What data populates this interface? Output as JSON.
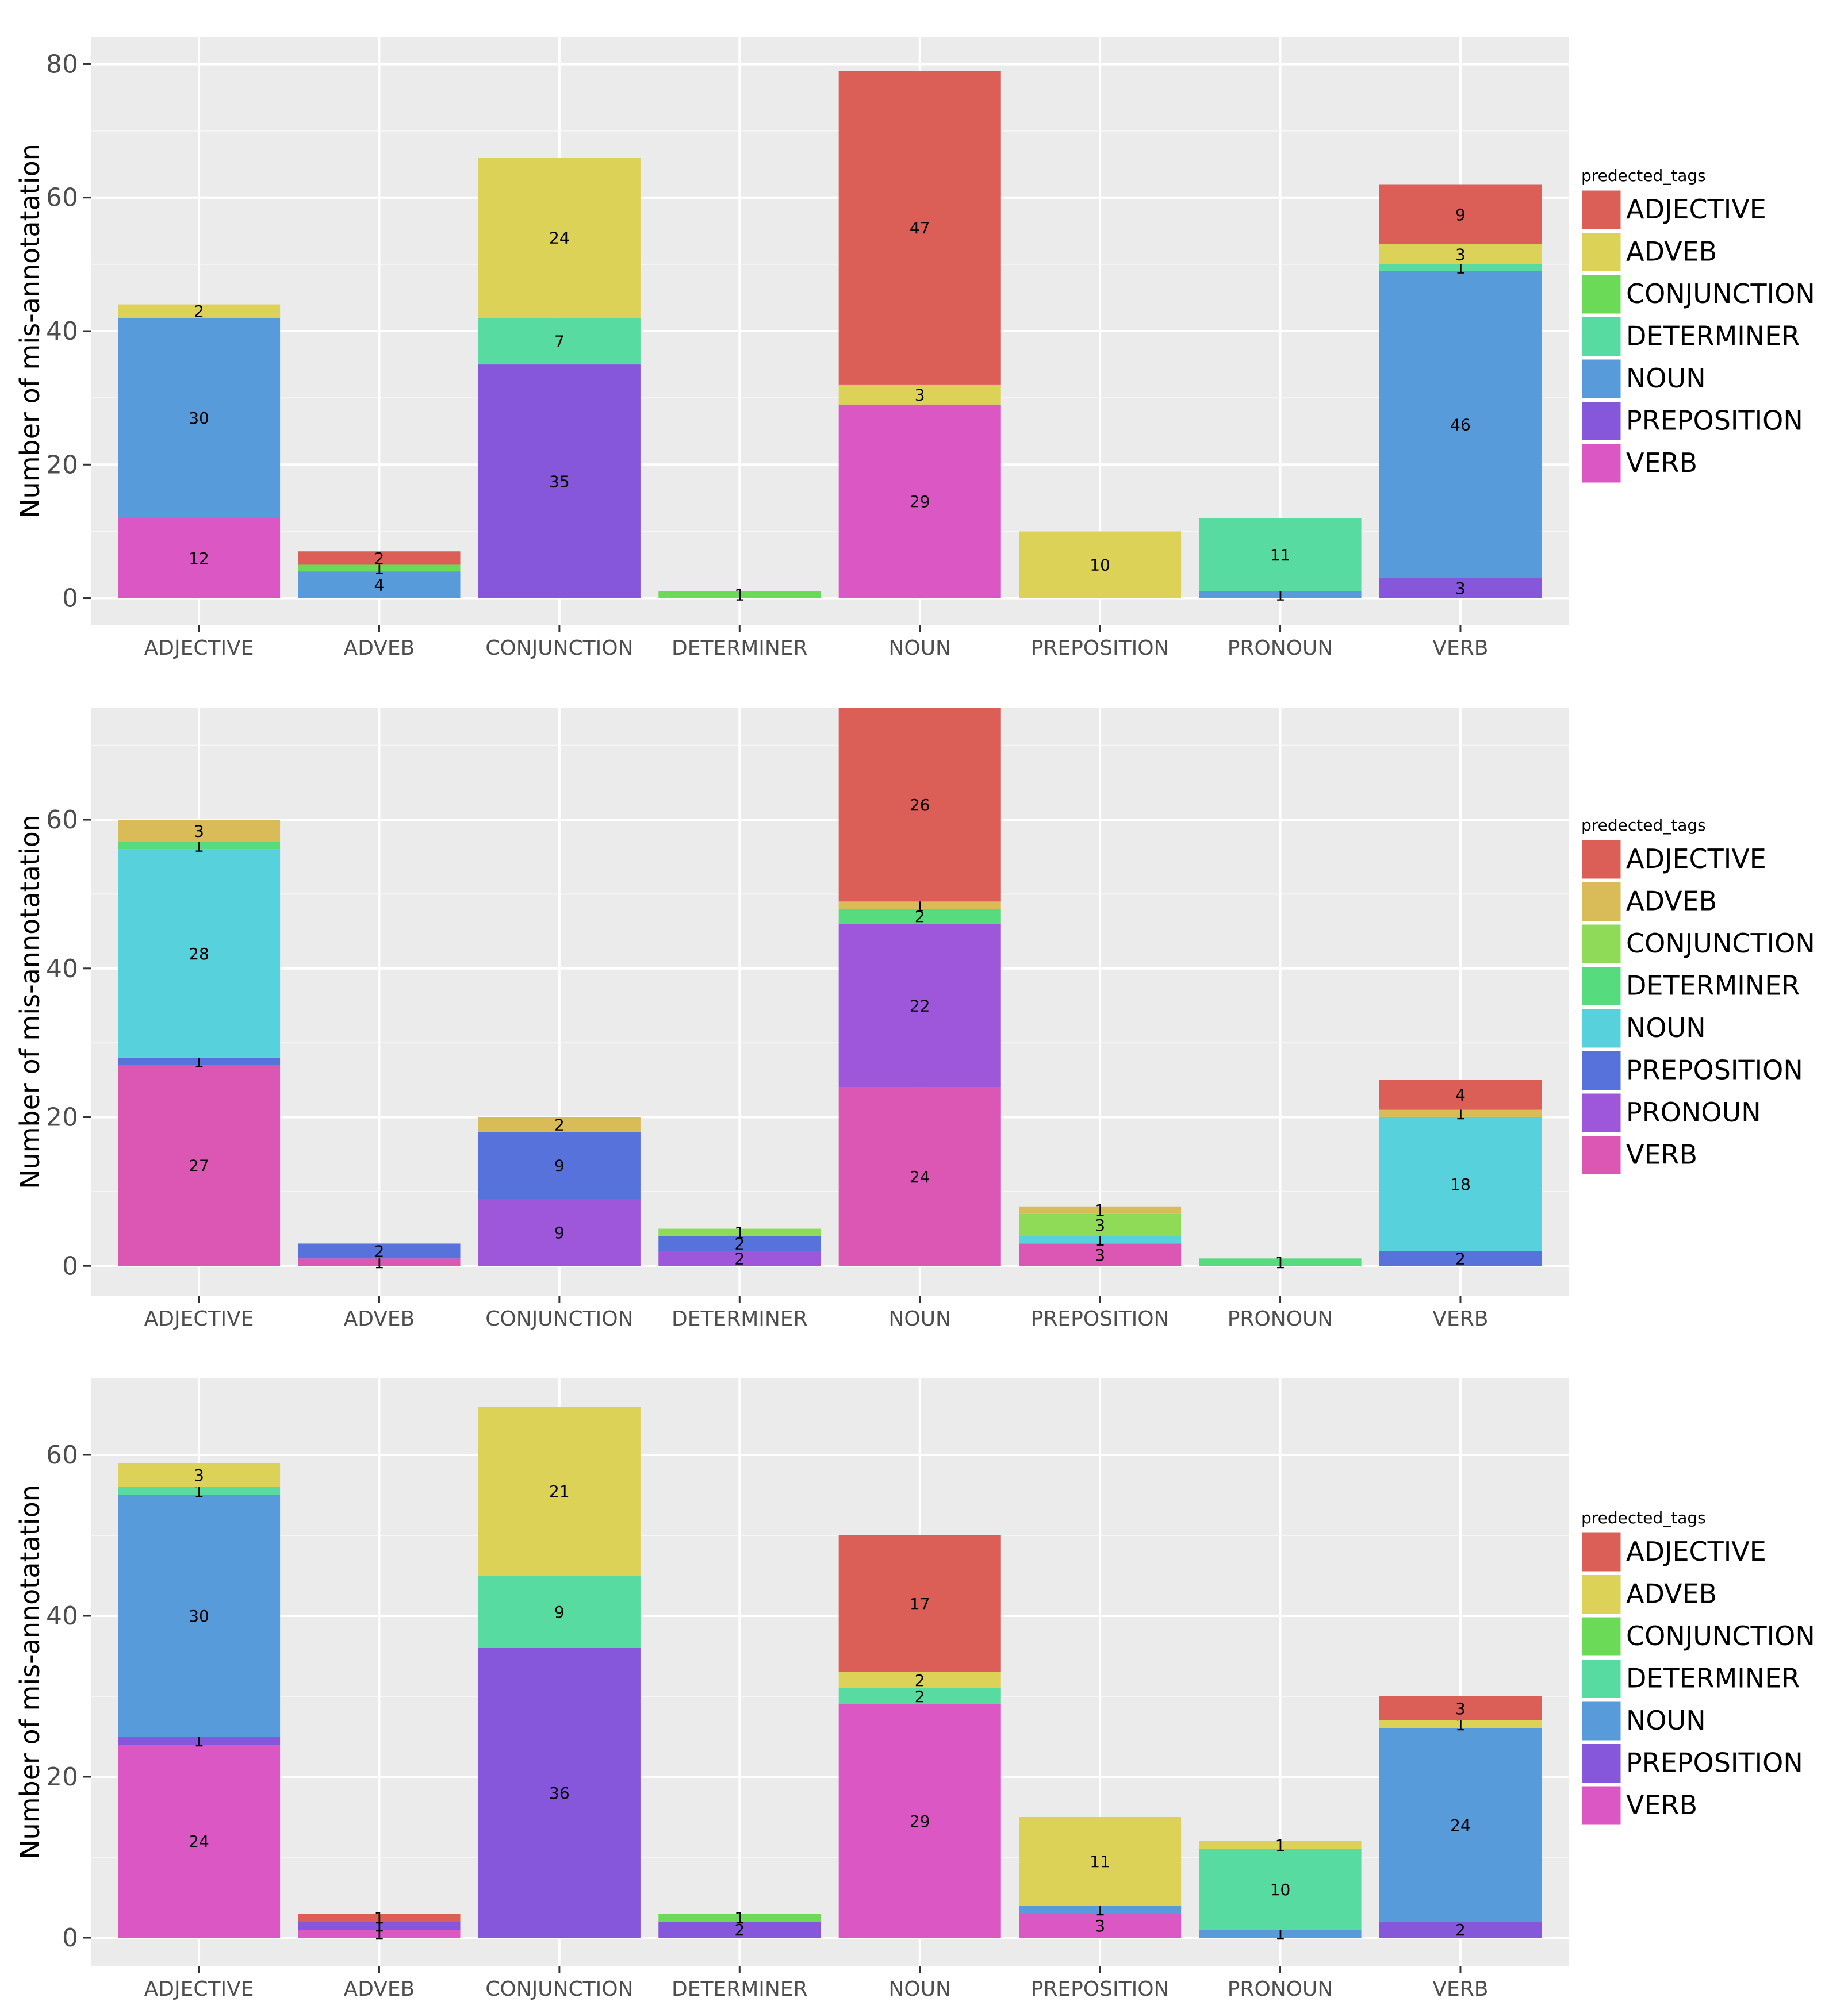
{
  "colors": {
    "panel_bg": "#EBEBEB",
    "grid": "#FFFFFF",
    "palette7": [
      "#DB5F57",
      "#DBD257",
      "#6BDB57",
      "#57DBA0",
      "#579BDB",
      "#8657DB",
      "#DB57C4"
    ],
    "palette8": [
      "#DB5F57",
      "#D9BC57",
      "#8FDB57",
      "#57DB7F",
      "#57D1DB",
      "#5772DB",
      "#9E57DB",
      "#DB57B3"
    ]
  },
  "chart_data": [
    {
      "type": "bar",
      "stacked": true,
      "ylabel": "Number of mis-annotatation",
      "xlabel": "",
      "ylim": [
        -4,
        84
      ],
      "yticks": [
        0,
        20,
        40,
        60,
        80
      ],
      "categories": [
        "ADJECTIVE",
        "ADVEB",
        "CONJUNCTION",
        "DETERMINER",
        "NOUN",
        "PREPOSITION",
        "PRONOUN",
        "VERB"
      ],
      "legend": {
        "title": "predected_tags",
        "position": "right",
        "entries": [
          "ADJECTIVE",
          "ADVEB",
          "CONJUNCTION",
          "DETERMINER",
          "NOUN",
          "PREPOSITION",
          "VERB"
        ]
      },
      "series": [
        {
          "name": "ADJECTIVE",
          "values": [
            0,
            2,
            0,
            0,
            47,
            0,
            0,
            9
          ]
        },
        {
          "name": "ADVEB",
          "values": [
            2,
            0,
            24,
            0,
            3,
            10,
            0,
            3
          ]
        },
        {
          "name": "CONJUNCTION",
          "values": [
            0,
            1,
            0,
            1,
            0,
            0,
            0,
            0
          ]
        },
        {
          "name": "DETERMINER",
          "values": [
            0,
            0,
            7,
            0,
            0,
            0,
            11,
            1
          ]
        },
        {
          "name": "NOUN",
          "values": [
            30,
            4,
            0,
            0,
            0,
            0,
            1,
            46
          ]
        },
        {
          "name": "PREPOSITION",
          "values": [
            0,
            0,
            35,
            0,
            0,
            0,
            0,
            3
          ]
        },
        {
          "name": "VERB",
          "values": [
            12,
            0,
            0,
            0,
            29,
            0,
            0,
            0
          ]
        }
      ]
    },
    {
      "type": "bar",
      "stacked": true,
      "ylabel": "Number of mis-annotatation",
      "xlabel": "",
      "ylim": [
        -4,
        75
      ],
      "yticks": [
        0,
        20,
        40,
        60
      ],
      "categories": [
        "ADJECTIVE",
        "ADVEB",
        "CONJUNCTION",
        "DETERMINER",
        "NOUN",
        "PREPOSITION",
        "PRONOUN",
        "VERB"
      ],
      "legend": {
        "title": "predected_tags",
        "position": "right",
        "entries": [
          "ADJECTIVE",
          "ADVEB",
          "CONJUNCTION",
          "DETERMINER",
          "NOUN",
          "PREPOSITION",
          "PRONOUN",
          "VERB"
        ]
      },
      "series": [
        {
          "name": "ADJECTIVE",
          "values": [
            0,
            0,
            0,
            0,
            26,
            0,
            0,
            4
          ]
        },
        {
          "name": "ADVEB",
          "values": [
            3,
            0,
            2,
            0,
            1,
            1,
            0,
            1
          ]
        },
        {
          "name": "CONJUNCTION",
          "values": [
            0,
            0,
            0,
            1,
            0,
            3,
            0,
            0
          ]
        },
        {
          "name": "DETERMINER",
          "values": [
            1,
            0,
            0,
            0,
            2,
            0,
            1,
            0
          ]
        },
        {
          "name": "NOUN",
          "values": [
            28,
            0,
            0,
            0,
            0,
            1,
            0,
            18
          ]
        },
        {
          "name": "PREPOSITION",
          "values": [
            1,
            2,
            9,
            2,
            0,
            0,
            0,
            2
          ]
        },
        {
          "name": "PRONOUN",
          "values": [
            0,
            0,
            9,
            2,
            22,
            0,
            0,
            0
          ]
        },
        {
          "name": "VERB",
          "values": [
            27,
            1,
            0,
            0,
            24,
            3,
            0,
            0
          ]
        }
      ]
    },
    {
      "type": "bar",
      "stacked": true,
      "ylabel": "Number of mis-annotatation",
      "xlabel": "",
      "ylim": [
        -3.5,
        69.5
      ],
      "yticks": [
        0,
        20,
        40,
        60
      ],
      "categories": [
        "ADJECTIVE",
        "ADVEB",
        "CONJUNCTION",
        "DETERMINER",
        "NOUN",
        "PREPOSITION",
        "PRONOUN",
        "VERB"
      ],
      "legend": {
        "title": "predected_tags",
        "position": "right",
        "entries": [
          "ADJECTIVE",
          "ADVEB",
          "CONJUNCTION",
          "DETERMINER",
          "NOUN",
          "PREPOSITION",
          "VERB"
        ]
      },
      "series": [
        {
          "name": "ADJECTIVE",
          "values": [
            0,
            1,
            0,
            0,
            17,
            0,
            0,
            3
          ]
        },
        {
          "name": "ADVEB",
          "values": [
            3,
            0,
            21,
            0,
            2,
            11,
            1,
            1
          ]
        },
        {
          "name": "CONJUNCTION",
          "values": [
            0,
            0,
            0,
            1,
            0,
            0,
            0,
            0
          ]
        },
        {
          "name": "DETERMINER",
          "values": [
            1,
            0,
            9,
            0,
            2,
            0,
            10,
            0
          ]
        },
        {
          "name": "NOUN",
          "values": [
            30,
            0,
            0,
            0,
            0,
            1,
            1,
            24
          ]
        },
        {
          "name": "PREPOSITION",
          "values": [
            1,
            1,
            36,
            2,
            0,
            0,
            0,
            2
          ]
        },
        {
          "name": "VERB",
          "values": [
            24,
            1,
            0,
            0,
            29,
            3,
            0,
            0
          ]
        }
      ]
    }
  ]
}
